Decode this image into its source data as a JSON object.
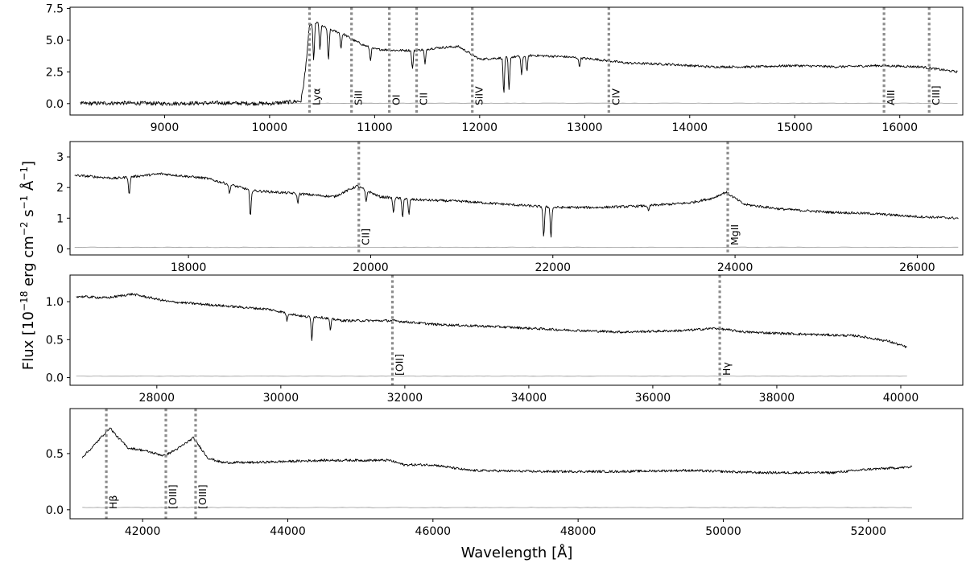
{
  "chart_data": {
    "type": "line",
    "xlabel": "Wavelength [Å]",
    "ylabel_parts": {
      "flux": "Flux [10",
      "e1": "−18",
      "erg": " erg cm",
      "e2": "−2",
      "s": " s",
      "e3": "−1",
      "ang": " Å",
      "e4": "−1",
      "close": "]"
    },
    "panels": [
      {
        "xlim": [
          8100,
          16600
        ],
        "ylim": [
          -0.9,
          7.6
        ],
        "xticks": [
          9000,
          10000,
          11000,
          12000,
          13000,
          14000,
          15000,
          16000
        ],
        "xtick_labels": [
          "9000",
          "10000",
          "11000",
          "12000",
          "13000",
          "14000",
          "15000",
          "16000"
        ],
        "yticks": [
          0.0,
          2.5,
          5.0,
          7.5
        ],
        "ytick_labels": [
          "0.0",
          "2.5",
          "5.0",
          "7.5"
        ],
        "spectrum": {
          "x": [
            8200,
            8600,
            9000,
            9500,
            10000,
            10300,
            10340,
            10380,
            10450,
            10550,
            10700,
            10800,
            10900,
            11000,
            11200,
            11400,
            11600,
            11800,
            12000,
            12200,
            12500,
            12800,
            13100,
            13400,
            13800,
            14200,
            14600,
            15000,
            15400,
            15800,
            16200,
            16550
          ],
          "y": [
            0.0,
            0.05,
            0.0,
            0.05,
            0.0,
            0.2,
            2.5,
            6.2,
            6.4,
            5.9,
            5.5,
            5.0,
            4.6,
            4.3,
            4.2,
            4.2,
            4.4,
            4.5,
            3.5,
            3.6,
            3.8,
            3.7,
            3.5,
            3.2,
            3.1,
            2.9,
            2.9,
            3.0,
            2.9,
            3.0,
            2.9,
            2.5
          ]
        },
        "absorption": [
          {
            "x": 10420,
            "depth": 3.0
          },
          {
            "x": 10480,
            "depth": 2.0
          },
          {
            "x": 10560,
            "depth": 2.5
          },
          {
            "x": 10680,
            "depth": 1.2
          },
          {
            "x": 10960,
            "depth": 1.0
          },
          {
            "x": 11360,
            "depth": 1.5
          },
          {
            "x": 11480,
            "depth": 1.2
          },
          {
            "x": 12230,
            "depth": 2.8
          },
          {
            "x": 12280,
            "depth": 2.6
          },
          {
            "x": 12400,
            "depth": 1.5
          },
          {
            "x": 12450,
            "depth": 1.2
          },
          {
            "x": 12950,
            "depth": 0.7
          }
        ],
        "error": {
          "x": [
            8200,
            16550
          ],
          "y": [
            0.03,
            0.03
          ]
        },
        "lines": [
          {
            "x": 10380,
            "label": "Lyα"
          },
          {
            "x": 10780,
            "label": "SiII"
          },
          {
            "x": 11140,
            "label": "OI"
          },
          {
            "x": 11400,
            "label": "CII"
          },
          {
            "x": 11930,
            "label": "SiIV"
          },
          {
            "x": 13230,
            "label": "CIV"
          },
          {
            "x": 15850,
            "label": "AlII"
          },
          {
            "x": 16280,
            "label": "CIII]"
          }
        ]
      },
      {
        "xlim": [
          16700,
          26500
        ],
        "ylim": [
          -0.2,
          3.5
        ],
        "xticks": [
          18000,
          20000,
          22000,
          24000,
          26000
        ],
        "xtick_labels": [
          "18000",
          "20000",
          "22000",
          "24000",
          "26000"
        ],
        "yticks": [
          0,
          1,
          2,
          3
        ],
        "ytick_labels": [
          "0",
          "1",
          "2",
          "3"
        ],
        "spectrum": {
          "x": [
            16750,
            17200,
            17700,
            18200,
            18700,
            19200,
            19600,
            19850,
            20100,
            20500,
            21000,
            21500,
            22000,
            22500,
            23000,
            23500,
            23750,
            23900,
            24100,
            24500,
            25000,
            25500,
            26000,
            26450
          ],
          "y": [
            2.4,
            2.3,
            2.45,
            2.3,
            1.9,
            1.8,
            1.7,
            2.05,
            1.7,
            1.6,
            1.55,
            1.45,
            1.35,
            1.35,
            1.4,
            1.5,
            1.65,
            1.85,
            1.45,
            1.3,
            1.2,
            1.15,
            1.05,
            1.0
          ]
        },
        "absorption": [
          {
            "x": 17350,
            "depth": 0.6
          },
          {
            "x": 18450,
            "depth": 0.3
          },
          {
            "x": 18680,
            "depth": 0.9
          },
          {
            "x": 19200,
            "depth": 0.3
          },
          {
            "x": 19950,
            "depth": 0.4
          },
          {
            "x": 20250,
            "depth": 0.5
          },
          {
            "x": 20350,
            "depth": 0.6
          },
          {
            "x": 20420,
            "depth": 0.5
          },
          {
            "x": 21900,
            "depth": 1.0
          },
          {
            "x": 21980,
            "depth": 1.0
          },
          {
            "x": 23050,
            "depth": 0.2
          }
        ],
        "error": {
          "x": [
            16750,
            26450
          ],
          "y": [
            0.05,
            0.05
          ]
        },
        "lines": [
          {
            "x": 19870,
            "label": "CII]"
          },
          {
            "x": 23920,
            "label": "MgII"
          }
        ]
      },
      {
        "xlim": [
          26600,
          41000
        ],
        "ylim": [
          -0.1,
          1.35
        ],
        "xticks": [
          28000,
          30000,
          32000,
          34000,
          36000,
          38000,
          40000
        ],
        "xtick_labels": [
          "28000",
          "30000",
          "32000",
          "34000",
          "36000",
          "38000",
          "40000"
        ],
        "yticks": [
          0.0,
          0.5,
          1.0
        ],
        "ytick_labels": [
          "0.0",
          "0.5",
          "1.0"
        ],
        "spectrum": {
          "x": [
            26700,
            27200,
            27600,
            28200,
            29000,
            29800,
            30400,
            30600,
            31000,
            31800,
            32500,
            33500,
            34500,
            35500,
            36500,
            37000,
            37500,
            38500,
            39300,
            39800,
            40100
          ],
          "y": [
            1.07,
            1.05,
            1.1,
            1.0,
            0.95,
            0.9,
            0.8,
            0.8,
            0.75,
            0.75,
            0.7,
            0.67,
            0.63,
            0.6,
            0.62,
            0.65,
            0.6,
            0.57,
            0.55,
            0.48,
            0.4
          ]
        },
        "absorption": [
          {
            "x": 30500,
            "depth": 0.3
          },
          {
            "x": 30800,
            "depth": 0.15
          },
          {
            "x": 30100,
            "depth": 0.1
          }
        ],
        "error": {
          "x": [
            26700,
            40100
          ],
          "y": [
            0.02,
            0.02
          ]
        },
        "lines": [
          {
            "x": 31800,
            "label": "[OII]"
          },
          {
            "x": 37080,
            "label": "Hγ"
          }
        ]
      },
      {
        "xlim": [
          41000,
          53300
        ],
        "ylim": [
          -0.08,
          0.9
        ],
        "xticks": [
          42000,
          44000,
          46000,
          48000,
          50000,
          52000
        ],
        "xtick_labels": [
          "42000",
          "44000",
          "46000",
          "48000",
          "50000",
          "52000"
        ],
        "yticks": [
          0.0,
          0.5
        ],
        "ytick_labels": [
          "0.0",
          "0.5"
        ],
        "spectrum": {
          "x": [
            41170,
            41300,
            41450,
            41550,
            41650,
            41800,
            42000,
            42300,
            42500,
            42700,
            42800,
            42900,
            43100,
            43500,
            44500,
            45400,
            45600,
            46000,
            46500,
            47500,
            48500,
            49500,
            50500,
            51500,
            52000,
            52600
          ],
          "y": [
            0.47,
            0.55,
            0.66,
            0.73,
            0.65,
            0.55,
            0.53,
            0.48,
            0.55,
            0.64,
            0.55,
            0.46,
            0.42,
            0.42,
            0.44,
            0.44,
            0.4,
            0.4,
            0.35,
            0.34,
            0.34,
            0.35,
            0.33,
            0.33,
            0.36,
            0.38
          ]
        },
        "absorption": [],
        "error": {
          "x": [
            41170,
            52600
          ],
          "y": [
            0.02,
            0.02
          ]
        },
        "lines": [
          {
            "x": 41500,
            "label": "Hβ"
          },
          {
            "x": 42320,
            "label": "[OIII]"
          },
          {
            "x": 42730,
            "label": "[OIII]"
          }
        ]
      }
    ]
  }
}
